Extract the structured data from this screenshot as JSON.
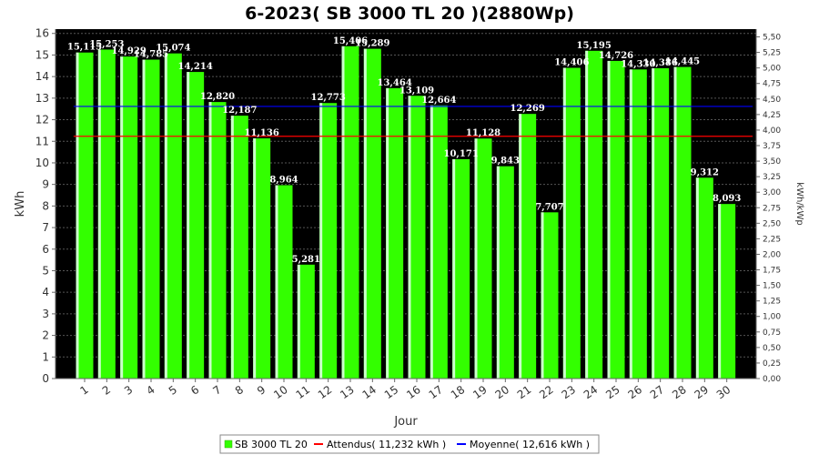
{
  "chart_data": {
    "type": "bar",
    "title": "6-2023( SB 3000 TL 20 )(2880Wp)",
    "xlabel": "Jour",
    "ylabel": "kWh",
    "ylabel_right": "kWh/kWp",
    "ylim": [
      0,
      16.2
    ],
    "ylim_right": [
      0,
      5.625
    ],
    "y_ticks": [
      0,
      1,
      2,
      3,
      4,
      5,
      6,
      7,
      8,
      9,
      10,
      11,
      12,
      13,
      14,
      15,
      16
    ],
    "y_ticks_right": [
      "0,00",
      "0,25",
      "0,50",
      "0,75",
      "1,00",
      "1,25",
      "1,50",
      "1,75",
      "2,00",
      "2,25",
      "2,50",
      "2,75",
      "3,00",
      "3,25",
      "3,50",
      "3,75",
      "4,00",
      "4,25",
      "4,50",
      "4,75",
      "5,00",
      "5,25",
      "5,50"
    ],
    "categories": [
      "1",
      "2",
      "3",
      "4",
      "5",
      "6",
      "7",
      "8",
      "9",
      "10",
      "11",
      "12",
      "13",
      "14",
      "15",
      "16",
      "17",
      "18",
      "19",
      "20",
      "21",
      "22",
      "23",
      "24",
      "25",
      "26",
      "27",
      "28",
      "29",
      "30"
    ],
    "series": [
      {
        "name": "SB 3000 TL 20",
        "color": "#33ff00",
        "values": [
          15.115,
          15.253,
          14.929,
          14.785,
          15.074,
          14.214,
          12.82,
          12.187,
          11.136,
          8.964,
          5.281,
          12.773,
          15.406,
          15.289,
          13.464,
          13.109,
          12.664,
          10.171,
          11.128,
          9.843,
          12.269,
          7.707,
          14.406,
          15.195,
          14.726,
          14.33,
          14.386,
          14.445,
          9.312,
          8.093
        ],
        "labels": [
          "15,115",
          "15,253",
          "14,929",
          "14,785",
          "15,074",
          "14,214",
          "12,820",
          "12,187",
          "11,136",
          "8,964",
          "5,281",
          "12,773",
          "15,406",
          "15,289",
          "13,464",
          "13,109",
          "12,664",
          "10,171",
          "11,128",
          "9,843",
          "12,269",
          "7,707",
          "14,406",
          "15,195",
          "14,726",
          "14,330",
          "14,386",
          "14,445",
          "9,312",
          "8,093"
        ]
      }
    ],
    "reference_lines": [
      {
        "name": "Attendus( 11,232 kWh )",
        "value": 11.232,
        "color": "#ff0000"
      },
      {
        "name": "Moyenne( 12,616 kWh )",
        "value": 12.616,
        "color": "#0000ff"
      }
    ],
    "grid": true,
    "legend_position": "bottom",
    "colors": {
      "plot_background": "#000000",
      "bar": "#33ff00",
      "bar_highlight": "#ccffcc",
      "grid": "#555555"
    }
  }
}
